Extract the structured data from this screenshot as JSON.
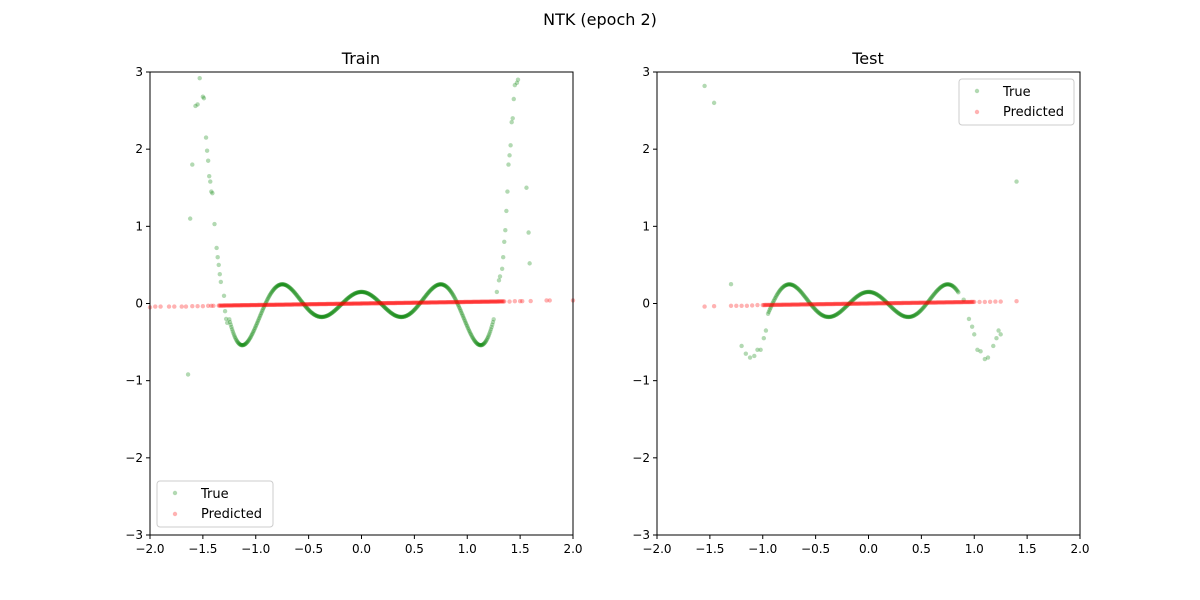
{
  "figure": {
    "suptitle": "NTK (epoch 2)"
  },
  "chart_data": [
    {
      "type": "scatter",
      "title": "Train",
      "xlabel": "",
      "ylabel": "",
      "xlim": [
        -2.0,
        2.0
      ],
      "ylim": [
        -3,
        3
      ],
      "xticks": [
        -2.0,
        -1.5,
        -1.0,
        -0.5,
        0.0,
        0.5,
        1.0,
        1.5,
        2.0
      ],
      "xtick_labels": [
        "−2.0",
        "−1.5",
        "−1.0",
        "−0.5",
        "0.0",
        "0.5",
        "1.0",
        "1.5",
        "2.0"
      ],
      "yticks": [
        -3,
        -2,
        -1,
        0,
        1,
        2,
        3
      ],
      "ytick_labels": [
        "−3",
        "−2",
        "−1",
        "0",
        "1",
        "2",
        "3"
      ],
      "legend_position": "lower-left",
      "legend": [
        "True",
        "Predicted"
      ],
      "true_dense": {
        "x_range": [
          -1.25,
          1.25
        ],
        "count": 380
      },
      "pred_dense": {
        "x_range": [
          -1.35,
          1.35
        ],
        "count": 300,
        "slope": 0.02
      },
      "series": [
        {
          "name": "True",
          "color": "#008000",
          "points": [
            [
              -1.64,
              -0.92
            ],
            [
              -1.62,
              1.1
            ],
            [
              -1.6,
              1.8
            ],
            [
              -1.57,
              2.56
            ],
            [
              -1.55,
              2.58
            ],
            [
              -1.53,
              2.92
            ],
            [
              -1.5,
              2.68
            ],
            [
              -1.49,
              2.66
            ],
            [
              -1.47,
              2.15
            ],
            [
              -1.46,
              1.98
            ],
            [
              -1.45,
              1.85
            ],
            [
              -1.44,
              1.65
            ],
            [
              -1.43,
              1.58
            ],
            [
              -1.42,
              1.45
            ],
            [
              -1.41,
              1.43
            ],
            [
              -1.39,
              1.03
            ],
            [
              -1.37,
              0.72
            ],
            [
              -1.36,
              0.6
            ],
            [
              -1.35,
              0.5
            ],
            [
              -1.34,
              0.38
            ],
            [
              -1.33,
              0.28
            ],
            [
              -1.3,
              0.1
            ],
            [
              -1.29,
              -0.1
            ],
            [
              -1.28,
              -0.2
            ],
            [
              -1.27,
              -0.25
            ],
            [
              1.28,
              0.15
            ],
            [
              1.3,
              0.3
            ],
            [
              1.31,
              0.35
            ],
            [
              1.33,
              0.45
            ],
            [
              1.34,
              0.6
            ],
            [
              1.35,
              0.8
            ],
            [
              1.36,
              0.95
            ],
            [
              1.37,
              1.2
            ],
            [
              1.38,
              1.45
            ],
            [
              1.39,
              1.8
            ],
            [
              1.4,
              1.92
            ],
            [
              1.41,
              2.05
            ],
            [
              1.42,
              2.35
            ],
            [
              1.43,
              2.4
            ],
            [
              1.44,
              2.65
            ],
            [
              1.45,
              2.83
            ],
            [
              1.47,
              2.86
            ],
            [
              1.48,
              2.9
            ],
            [
              1.56,
              1.5
            ],
            [
              1.58,
              0.92
            ],
            [
              1.59,
              0.52
            ]
          ]
        },
        {
          "name": "Predicted",
          "color": "#ff0000",
          "points": [
            [
              -2.0,
              -0.05
            ],
            [
              -1.95,
              -0.04
            ],
            [
              -1.9,
              -0.04
            ],
            [
              -1.82,
              -0.04
            ],
            [
              -1.77,
              -0.04
            ],
            [
              -1.7,
              -0.04
            ],
            [
              -1.66,
              -0.04
            ],
            [
              -1.6,
              -0.035
            ],
            [
              -1.55,
              -0.035
            ],
            [
              -1.5,
              -0.035
            ],
            [
              -1.45,
              -0.03
            ],
            [
              -1.42,
              -0.03
            ],
            [
              -1.4,
              -0.03
            ],
            [
              1.4,
              0.025
            ],
            [
              1.45,
              0.03
            ],
            [
              1.5,
              0.03
            ],
            [
              1.52,
              0.03
            ],
            [
              1.6,
              0.032
            ],
            [
              1.75,
              0.04
            ],
            [
              1.78,
              0.04
            ],
            [
              2.0,
              0.04
            ]
          ]
        }
      ]
    },
    {
      "type": "scatter",
      "title": "Test",
      "xlabel": "",
      "ylabel": "",
      "xlim": [
        -2.0,
        2.0
      ],
      "ylim": [
        -3,
        3
      ],
      "xticks": [
        -2.0,
        -1.5,
        -1.0,
        -0.5,
        0.0,
        0.5,
        1.0,
        1.5,
        2.0
      ],
      "xtick_labels": [
        "−2.0",
        "−1.5",
        "−1.0",
        "−0.5",
        "0.0",
        "0.5",
        "1.0",
        "1.5",
        "2.0"
      ],
      "yticks": [
        -3,
        -2,
        -1,
        0,
        1,
        2,
        3
      ],
      "ytick_labels": [
        "−3",
        "−2",
        "−1",
        "0",
        "1",
        "2",
        "3"
      ],
      "legend_position": "top-right",
      "legend": [
        "True",
        "Predicted"
      ],
      "true_dense": {
        "x_range": [
          -0.95,
          0.85
        ],
        "count": 240
      },
      "pred_dense": {
        "x_range": [
          -1.0,
          1.0
        ],
        "count": 200,
        "slope": 0.02
      },
      "series": [
        {
          "name": "True",
          "color": "#008000",
          "points": [
            [
              -1.55,
              2.82
            ],
            [
              -1.46,
              2.6
            ],
            [
              -1.3,
              0.25
            ],
            [
              -1.2,
              -0.55
            ],
            [
              -1.16,
              -0.65
            ],
            [
              -1.12,
              -0.7
            ],
            [
              -1.08,
              -0.68
            ],
            [
              -1.05,
              -0.6
            ],
            [
              -1.02,
              -0.6
            ],
            [
              -0.99,
              -0.45
            ],
            [
              -0.97,
              -0.35
            ],
            [
              0.9,
              0.05
            ],
            [
              0.95,
              -0.2
            ],
            [
              0.98,
              -0.3
            ],
            [
              1.0,
              -0.4
            ],
            [
              1.03,
              -0.6
            ],
            [
              1.06,
              -0.62
            ],
            [
              1.1,
              -0.72
            ],
            [
              1.13,
              -0.7
            ],
            [
              1.18,
              -0.55
            ],
            [
              1.21,
              -0.45
            ],
            [
              1.23,
              -0.35
            ],
            [
              1.25,
              -0.4
            ],
            [
              1.4,
              1.58
            ]
          ]
        },
        {
          "name": "Predicted",
          "color": "#ff0000",
          "points": [
            [
              -1.55,
              -0.04
            ],
            [
              -1.46,
              -0.035
            ],
            [
              -1.3,
              -0.03
            ],
            [
              -1.25,
              -0.03
            ],
            [
              -1.2,
              -0.03
            ],
            [
              -1.15,
              -0.03
            ],
            [
              -1.1,
              -0.025
            ],
            [
              -1.05,
              -0.02
            ],
            [
              1.05,
              0.02
            ],
            [
              1.1,
              0.02
            ],
            [
              1.15,
              0.022
            ],
            [
              1.2,
              0.025
            ],
            [
              1.25,
              0.025
            ],
            [
              1.4,
              0.03
            ]
          ]
        }
      ]
    }
  ]
}
